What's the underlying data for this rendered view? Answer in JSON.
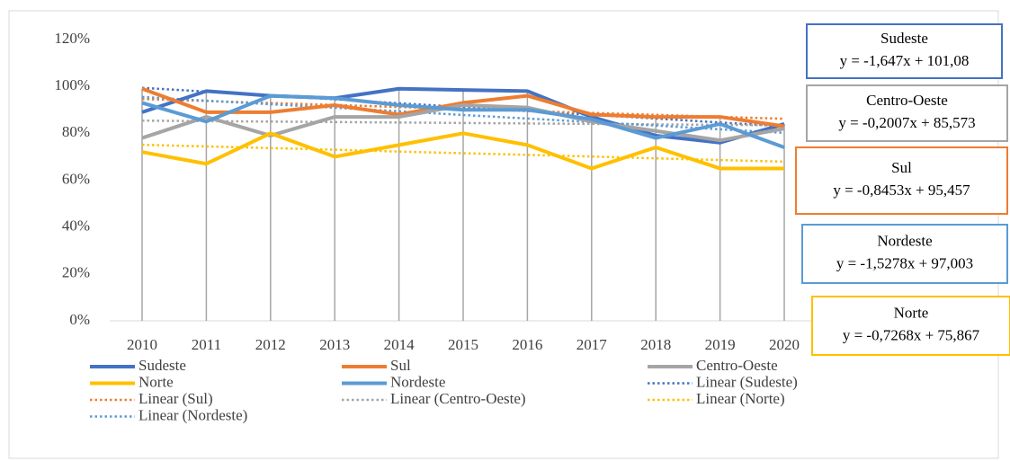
{
  "chart_data": {
    "type": "line",
    "categories": [
      "2010",
      "2011",
      "2012",
      "2013",
      "2014",
      "2015",
      "2016",
      "2017",
      "2018",
      "2019",
      "2020"
    ],
    "ylim": [
      0,
      120
    ],
    "yticks": [
      {
        "value": 0,
        "label": "0%"
      },
      {
        "value": 20,
        "label": "20%"
      },
      {
        "value": 40,
        "label": "40%"
      },
      {
        "value": 60,
        "label": "60%"
      },
      {
        "value": 80,
        "label": "80%"
      },
      {
        "value": 100,
        "label": "100%"
      },
      {
        "value": 120,
        "label": "120%"
      }
    ],
    "grid": false,
    "drop_lines": true,
    "series": [
      {
        "name": "Sudeste",
        "color": "#4472c4",
        "style": "solid",
        "values": [
          89,
          98,
          96,
          95,
          99,
          98.5,
          98,
          87,
          79,
          76,
          84
        ]
      },
      {
        "name": "Sul",
        "color": "#ed7d31",
        "style": "solid",
        "values": [
          99,
          89,
          89,
          92,
          88,
          93,
          96,
          88,
          87,
          87,
          83
        ]
      },
      {
        "name": "Centro-Oeste",
        "color": "#a5a5a5",
        "style": "solid",
        "values": [
          78,
          87,
          79,
          87,
          87,
          92,
          91,
          85,
          81,
          77,
          82
        ]
      },
      {
        "name": "Norte",
        "color": "#ffc000",
        "style": "solid",
        "values": [
          72,
          67,
          80,
          70,
          75,
          80,
          75,
          65,
          74,
          65,
          65
        ]
      },
      {
        "name": "Nordeste",
        "color": "#5b9bd5",
        "style": "solid",
        "values": [
          93,
          85,
          96,
          95,
          92,
          90,
          90,
          86,
          78,
          84,
          74
        ]
      },
      {
        "name": "Linear (Sudeste)",
        "color": "#4472c4",
        "style": "dotted",
        "values": [
          99.4,
          97.8,
          96.1,
          94.5,
          92.8,
          91.2,
          89.5,
          87.9,
          86.3,
          84.6,
          83.0
        ]
      },
      {
        "name": "Linear (Sul)",
        "color": "#ed7d31",
        "style": "dotted",
        "values": [
          94.6,
          93.8,
          92.9,
          92.1,
          91.2,
          90.4,
          89.5,
          88.7,
          87.9,
          87.0,
          86.2
        ]
      },
      {
        "name": "Linear (Centro-Oeste)",
        "color": "#a5a5a5",
        "style": "dotted",
        "values": [
          85.4,
          85.2,
          85.0,
          84.8,
          84.6,
          84.4,
          84.2,
          84.0,
          83.8,
          83.6,
          83.4
        ]
      },
      {
        "name": "Linear (Norte)",
        "color": "#ffc000",
        "style": "dotted",
        "values": [
          75.1,
          74.4,
          73.7,
          73.0,
          72.2,
          71.5,
          70.8,
          70.1,
          69.3,
          68.6,
          67.9
        ]
      },
      {
        "name": "Linear (Nordeste)",
        "color": "#5b9bd5",
        "style": "dotted",
        "values": [
          95.5,
          93.9,
          92.4,
          90.9,
          89.4,
          87.8,
          86.3,
          84.8,
          83.3,
          81.7,
          80.2
        ]
      }
    ],
    "annotations": [
      {
        "title": "Sudeste",
        "text": "y = -1,647x + 101,08",
        "color": "#4472c4"
      },
      {
        "title": "Centro-Oeste",
        "text": "y = -0,2007x + 85,573",
        "color": "#a5a5a5"
      },
      {
        "title": "Sul",
        "text": "y = -0,8453x + 95,457",
        "color": "#ed7d31"
      },
      {
        "title": "Nordeste",
        "text": "y = -1,5278x + 97,003",
        "color": "#5b9bd5"
      },
      {
        "title": "Norte",
        "text": "y = -0,7268x + 75,867",
        "color": "#ffc000"
      }
    ]
  }
}
